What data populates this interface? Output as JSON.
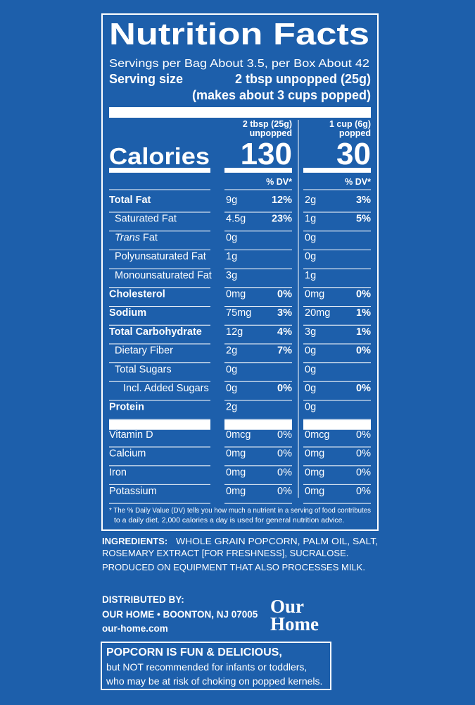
{
  "header": {
    "title": "Nutrition Facts",
    "servings": "Servings per Bag About 3.5, per Box About 42",
    "serving_size_label": "Serving size",
    "serving_size": "2 tbsp unpopped (25g)",
    "serving_size_note": "(makes about 3 cups popped)"
  },
  "calories_label": "Calories",
  "columns": [
    {
      "amount": "2 tbsp (25g)",
      "state": "unpopped",
      "calories": 130,
      "dv_header": "% DV*"
    },
    {
      "amount": "1 cup (6g)",
      "state": "popped",
      "calories": 30,
      "dv_header": "% DV*"
    }
  ],
  "nutrients": [
    {
      "name": "Total Fat",
      "values": [
        {
          "amount": "9g",
          "dv": "12%"
        },
        {
          "amount": "2g",
          "dv": "3%"
        }
      ]
    },
    {
      "name": "Saturated Fat",
      "values": [
        {
          "amount": "4.5g",
          "dv": "23%"
        },
        {
          "amount": "1g",
          "dv": "5%"
        }
      ]
    },
    {
      "name_italic": "Trans",
      "name": "Fat",
      "values": [
        {
          "amount": "0g"
        },
        {
          "amount": "0g"
        }
      ]
    },
    {
      "name": "Polyunsaturated Fat",
      "values": [
        {
          "amount": "1g"
        },
        {
          "amount": "0g"
        }
      ]
    },
    {
      "name": "Monounsaturated Fat",
      "values": [
        {
          "amount": "3g"
        },
        {
          "amount": "1g"
        }
      ]
    },
    {
      "name": "Cholesterol",
      "values": [
        {
          "amount": "0mg",
          "dv": "0%"
        },
        {
          "amount": "0mg",
          "dv": "0%"
        }
      ]
    },
    {
      "name": "Sodium",
      "values": [
        {
          "amount": "75mg",
          "dv": "3%"
        },
        {
          "amount": "20mg",
          "dv": "1%"
        }
      ]
    },
    {
      "name": "Total Carbohydrate",
      "values": [
        {
          "amount": "12g",
          "dv": "4%"
        },
        {
          "amount": "3g",
          "dv": "1%"
        }
      ]
    },
    {
      "name": "Dietary Fiber",
      "values": [
        {
          "amount": "2g",
          "dv": "7%"
        },
        {
          "amount": "0g",
          "dv": "0%"
        }
      ]
    },
    {
      "name": "Total Sugars",
      "values": [
        {
          "amount": "0g"
        },
        {
          "amount": "0g"
        }
      ]
    },
    {
      "name": "Incl. Added Sugars",
      "values": [
        {
          "amount": "0g",
          "dv": "0%"
        },
        {
          "amount": "0g",
          "dv": "0%"
        }
      ]
    },
    {
      "name": "Protein",
      "values": [
        {
          "amount": "2g"
        },
        {
          "amount": "0g"
        }
      ]
    }
  ],
  "vitamins": [
    {
      "name": "Vitamin D",
      "values": [
        {
          "amount": "0mcg",
          "dv": "0%"
        },
        {
          "amount": "0mcg",
          "dv": "0%"
        }
      ]
    },
    {
      "name": "Calcium",
      "values": [
        {
          "amount": "0mg",
          "dv": "0%"
        },
        {
          "amount": "0mg",
          "dv": "0%"
        }
      ]
    },
    {
      "name": "Iron",
      "values": [
        {
          "amount": "0mg",
          "dv": "0%"
        },
        {
          "amount": "0mg",
          "dv": "0%"
        }
      ]
    },
    {
      "name": "Potassium",
      "values": [
        {
          "amount": "0mg",
          "dv": "0%"
        },
        {
          "amount": "0mg",
          "dv": "0%"
        }
      ]
    }
  ],
  "footnote": [
    "* The % Daily Value (DV) tells you how much a nutrient in a serving of food contributes",
    "to a daily diet. 2,000 calories a day is used for general nutrition advice."
  ],
  "ingredients_label": "INGREDIENTS:",
  "ingredients": [
    "WHOLE GRAIN POPCORN, PALM OIL, SALT,",
    "ROSEMARY EXTRACT [FOR FRESHNESS], SUCRALOSE."
  ],
  "allergen": "PRODUCED ON EQUIPMENT THAT ALSO PROCESSES MILK.",
  "distributor": {
    "label": "DISTRIBUTED BY:",
    "address": "OUR HOME • BOONTON, NJ 07005",
    "website": "our-home.com"
  },
  "brand": [
    "Our",
    "Home"
  ],
  "warning": {
    "title": "POPCORN IS FUN & DELICIOUS,",
    "lines": [
      "but NOT recommended for infants or toddlers,",
      "who may be at risk of choking on popped kernels."
    ]
  }
}
